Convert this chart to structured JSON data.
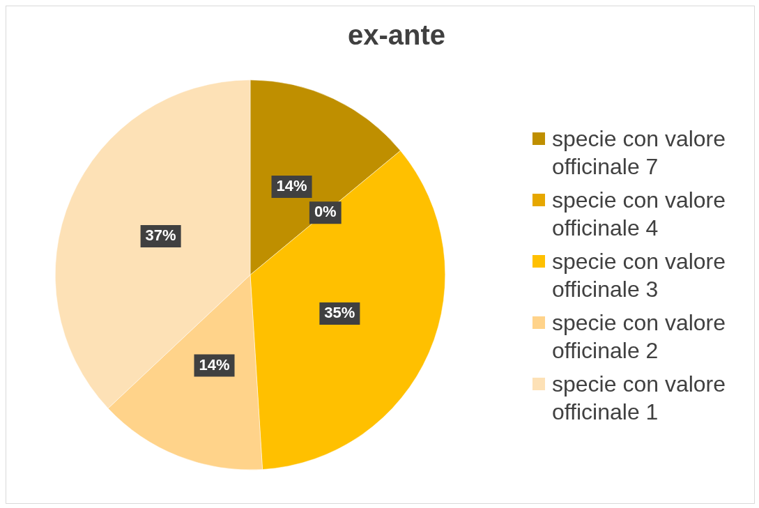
{
  "chart_data": {
    "type": "pie",
    "title": "ex-ante",
    "categories": [
      "specie con valore officinale 7",
      "specie con valore officinale 4",
      "specie con valore officinale 3",
      "specie con valore officinale 2",
      "specie con valore officinale 1"
    ],
    "values": [
      14,
      0,
      35,
      14,
      37
    ],
    "colors": [
      "#bf8f00",
      "#e6a700",
      "#ffc000",
      "#ffd38a",
      "#fde1b6"
    ],
    "value_labels": [
      "14%",
      "0%",
      "35%",
      "14%",
      "37%"
    ],
    "legend": "right"
  }
}
